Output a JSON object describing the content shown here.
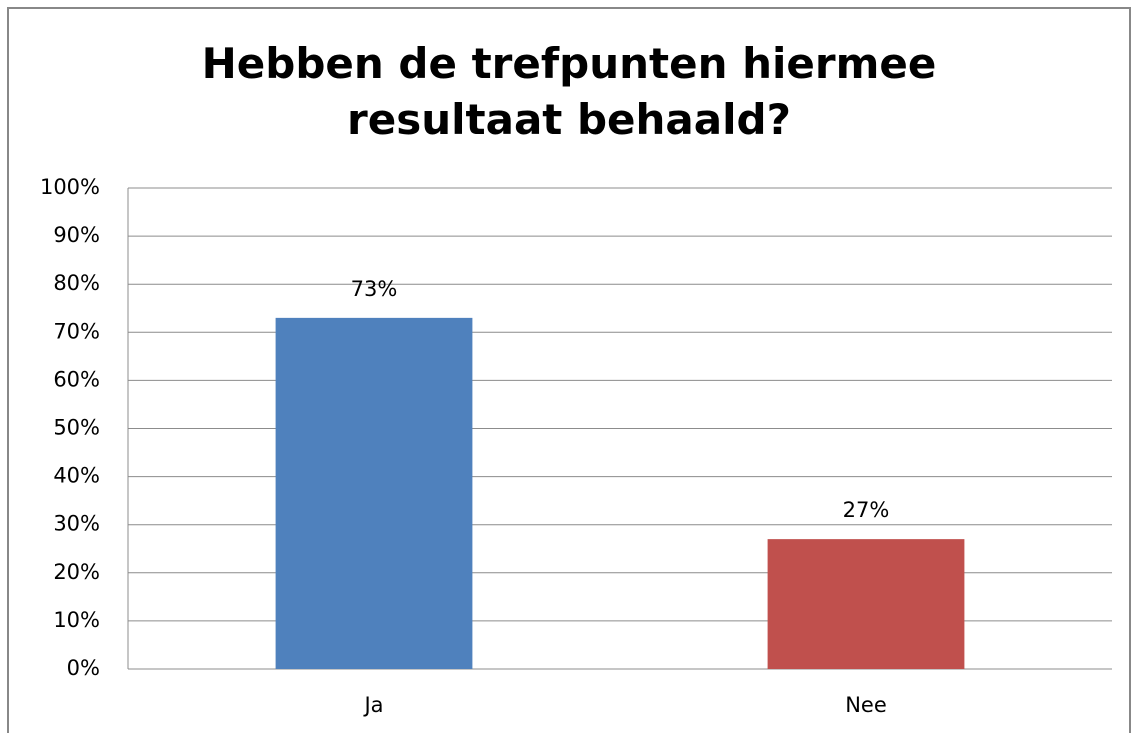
{
  "chart_data": {
    "type": "bar",
    "title": "Hebben de trefpunten hiermee resultaat behaald?",
    "categories": [
      "Ja",
      "Nee"
    ],
    "values": [
      73,
      27
    ],
    "value_labels": [
      "73%",
      "27%"
    ],
    "colors": [
      "#4f81bd",
      "#c0504d"
    ],
    "ylim": [
      0,
      100
    ],
    "yticks": [
      {
        "value": 0,
        "label": "0%"
      },
      {
        "value": 10,
        "label": "10%"
      },
      {
        "value": 20,
        "label": "20%"
      },
      {
        "value": 30,
        "label": "30%"
      },
      {
        "value": 40,
        "label": "40%"
      },
      {
        "value": 50,
        "label": "50%"
      },
      {
        "value": 60,
        "label": "60%"
      },
      {
        "value": 70,
        "label": "70%"
      },
      {
        "value": 80,
        "label": "80%"
      },
      {
        "value": 90,
        "label": "90%"
      },
      {
        "value": 100,
        "label": "100%"
      }
    ],
    "grid": true
  }
}
